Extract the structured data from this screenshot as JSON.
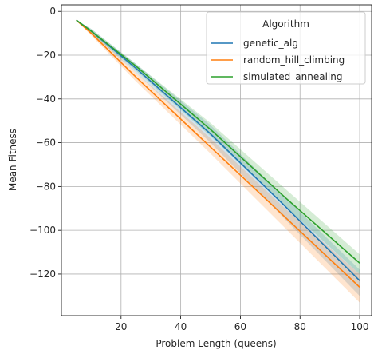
{
  "chart_data": {
    "type": "line",
    "xlabel": "Problem Length (queens)",
    "ylabel": "Mean Fitness",
    "xlim": [
      0,
      104
    ],
    "ylim": [
      -139,
      3
    ],
    "xticks": [
      20,
      40,
      60,
      80,
      100
    ],
    "yticks": [
      0,
      -20,
      -40,
      -60,
      -80,
      -100,
      -120
    ],
    "grid": true,
    "legend": {
      "title": "Algorithm",
      "placement": "top-right"
    },
    "x": [
      5,
      10,
      25,
      50,
      75,
      100
    ],
    "series": [
      {
        "name": "genetic_alg",
        "color": "#1f77b4",
        "values": [
          -4,
          -9,
          -26,
          -56,
          -89,
          -123
        ],
        "band_low": [
          -4,
          -10,
          -28,
          -60,
          -95,
          -130
        ],
        "band_high": [
          -4,
          -8,
          -24,
          -52,
          -85,
          -118
        ]
      },
      {
        "name": "random_hill_climbing",
        "color": "#ff7f0e",
        "values": [
          -4,
          -10,
          -30,
          -62,
          -94,
          -126
        ],
        "band_low": [
          -4,
          -11,
          -32,
          -65,
          -99,
          -133
        ],
        "band_high": [
          -4,
          -9,
          -28,
          -58,
          -90,
          -120
        ]
      },
      {
        "name": "simulated_annealing",
        "color": "#2ca02c",
        "values": [
          -4,
          -9,
          -25,
          -54,
          -85,
          -115
        ],
        "band_low": [
          -4,
          -10,
          -27,
          -57,
          -89,
          -120
        ],
        "band_high": [
          -4,
          -8,
          -24,
          -51,
          -81,
          -111
        ]
      }
    ]
  }
}
